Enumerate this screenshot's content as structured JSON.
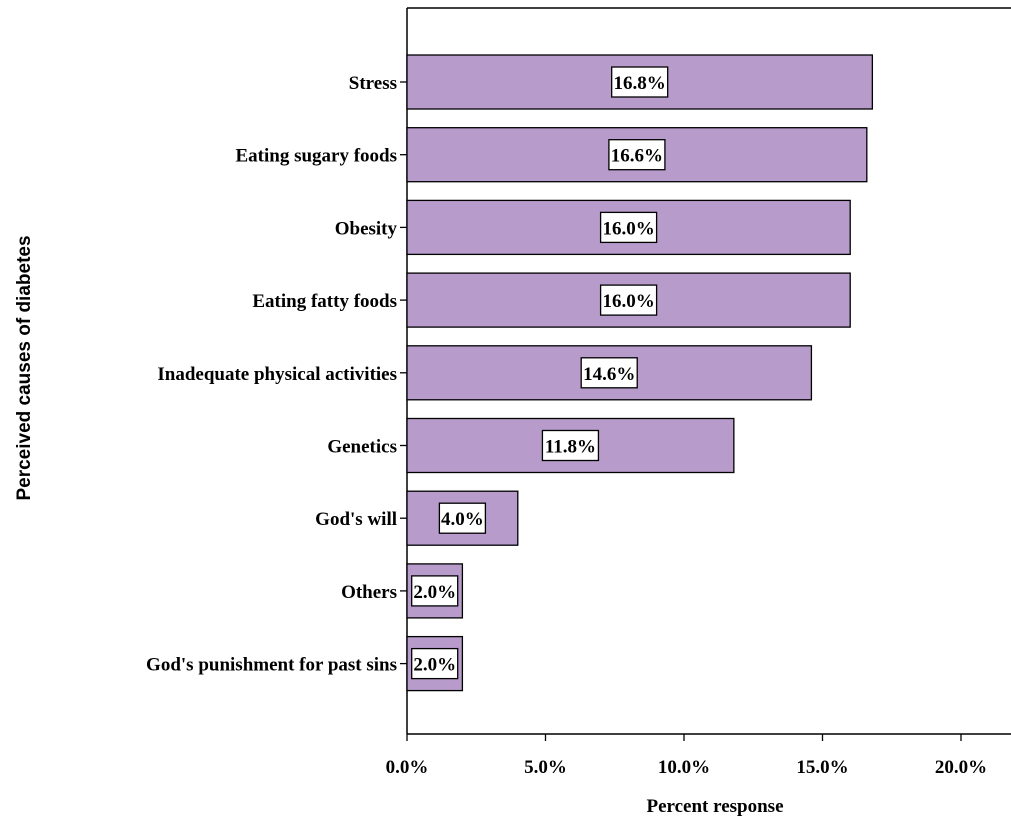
{
  "chart_data": {
    "type": "bar",
    "orientation": "horizontal",
    "categories": [
      "Stress",
      "Eating sugary foods",
      "Obesity",
      "Eating fatty foods",
      "Inadequate physical activities",
      "Genetics",
      "God's will",
      "Others",
      "God's punishment for past sins"
    ],
    "values": [
      16.8,
      16.6,
      16.0,
      16.0,
      14.6,
      11.8,
      4.0,
      2.0,
      2.0
    ],
    "data_labels": [
      "16.8%",
      "16.6%",
      "16.0%",
      "16.0%",
      "14.6%",
      "11.8%",
      "4.0%",
      "2.0%",
      "2.0%"
    ],
    "xlabel": "Percent response",
    "ylabel": "Perceived causes of diabetes",
    "xlim": [
      0,
      22
    ],
    "xticks": [
      0,
      5,
      10,
      15,
      20
    ],
    "xtick_labels": [
      "0.0%",
      "5.0%",
      "10.0%",
      "15.0%",
      "20.0%"
    ],
    "bar_color": "#b79bcb",
    "grid": false
  }
}
